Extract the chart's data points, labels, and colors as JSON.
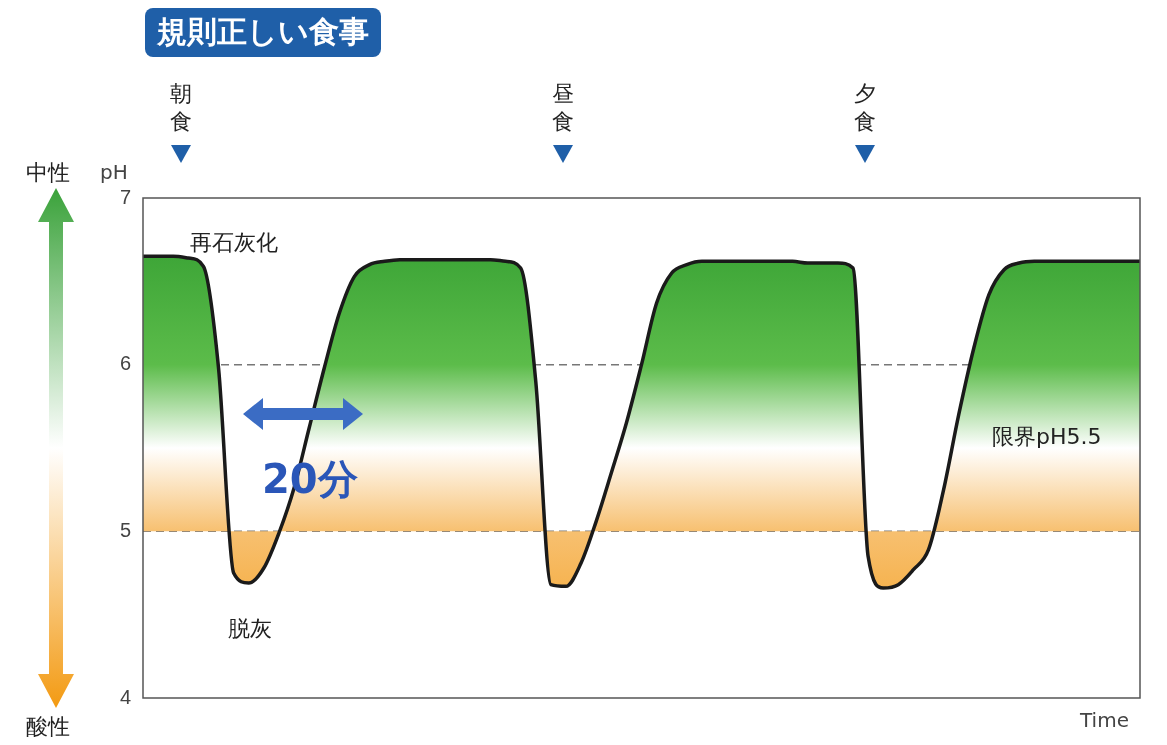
{
  "chart_data": {
    "type": "area",
    "title": "規則正しい食事",
    "xlabel": "Time",
    "ylabel": "pH",
    "categories": [
      null,
      null,
      null,
      null,
      null,
      null,
      null,
      null,
      null,
      null,
      null,
      null,
      null,
      null,
      null,
      null,
      null,
      null,
      null,
      null,
      null,
      null,
      null,
      null,
      null,
      null,
      null,
      null,
      null,
      null,
      null,
      null,
      null,
      null,
      null,
      null,
      null,
      null,
      null,
      null,
      null,
      null,
      null,
      null,
      null,
      null,
      null,
      null,
      null,
      null,
      null,
      null,
      null,
      null,
      null,
      null,
      null,
      null,
      null,
      null,
      null,
      null,
      null,
      null,
      null,
      null,
      null
    ],
    "series": [
      {
        "color": "#1a1a1a",
        "values": [
          6.65,
          6.65,
          6.65,
          6.64,
          6.59,
          5.98,
          4.75,
          4.69,
          4.78,
          4.99,
          5.26,
          5.62,
          5.98,
          6.31,
          6.53,
          6.6,
          6.62,
          6.63,
          6.63,
          6.63,
          6.63,
          6.63,
          6.63,
          6.63,
          6.62,
          6.58,
          5.9,
          4.68,
          4.67,
          4.81,
          5.06,
          5.35,
          5.65,
          6.0,
          6.37,
          6.55,
          6.6,
          6.62,
          6.62,
          6.62,
          6.62,
          6.62,
          6.62,
          6.62,
          6.61,
          6.61,
          6.61,
          6.58,
          4.85,
          4.66,
          4.68,
          4.77,
          4.89,
          5.25,
          5.7,
          6.1,
          6.42,
          6.57,
          6.61,
          6.62,
          6.62,
          6.62,
          6.62,
          6.62,
          6.62,
          6.62,
          6.62
        ]
      }
    ],
    "ylim": [
      4,
      7
    ],
    "yticks": [
      4,
      5,
      6,
      7
    ],
    "grid": false,
    "legend": false,
    "tick_labels": "y",
    "marker": "none",
    "ref_lines": [
      {
        "axis": "y",
        "value": 6,
        "color": "#777777",
        "line_style": "dashed"
      },
      {
        "axis": "y",
        "value": 5,
        "color": "#777777",
        "line_style": "dashed"
      }
    ],
    "annotations": [
      "朝食",
      "昼食",
      "夕食",
      "再石灰化",
      "脱灰",
      "20分",
      "限界pH5.5",
      "中性",
      "酸性"
    ]
  }
}
